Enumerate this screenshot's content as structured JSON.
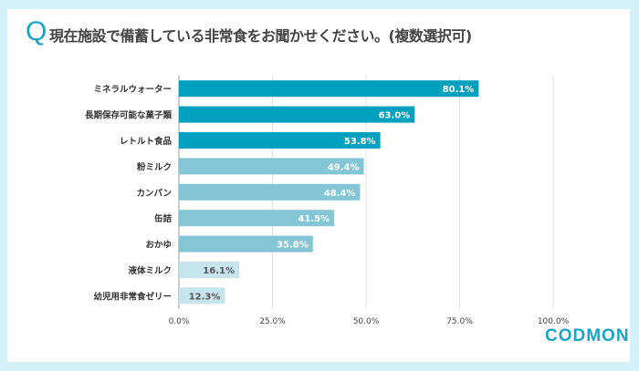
{
  "title": {
    "marker": "Q",
    "text": "現在施設で備蓄している非常食をお聞かせください。(複数選択可)"
  },
  "logo": "CODMON",
  "colors": {
    "background": "#d4f1f9",
    "accent": "#18a6c6",
    "top": "#00a0bf",
    "mid": "#84c6d6",
    "low": "#c6e4ec"
  },
  "chart_data": {
    "type": "bar",
    "orientation": "horizontal",
    "categories": [
      "ミネラルウォーター",
      "長期保存可能な菓子類",
      "レトルト食品",
      "粉ミルク",
      "カンパン",
      "缶詰",
      "おかゆ",
      "液体ミルク",
      "幼児用非常食ゼリー"
    ],
    "values": [
      80.1,
      63.0,
      53.8,
      49.4,
      48.4,
      41.5,
      35.8,
      16.1,
      12.3
    ],
    "data_labels": [
      "80.1%",
      "63.0%",
      "53.8%",
      "49.4%",
      "48.4%",
      "41.5%",
      "35.8%",
      "16.1%",
      "12.3%"
    ],
    "xlim": [
      0,
      100
    ],
    "xticks": [
      "0.0%",
      "25.0%",
      "50.0%",
      "75.0%",
      "100.0%"
    ],
    "grid": true
  }
}
